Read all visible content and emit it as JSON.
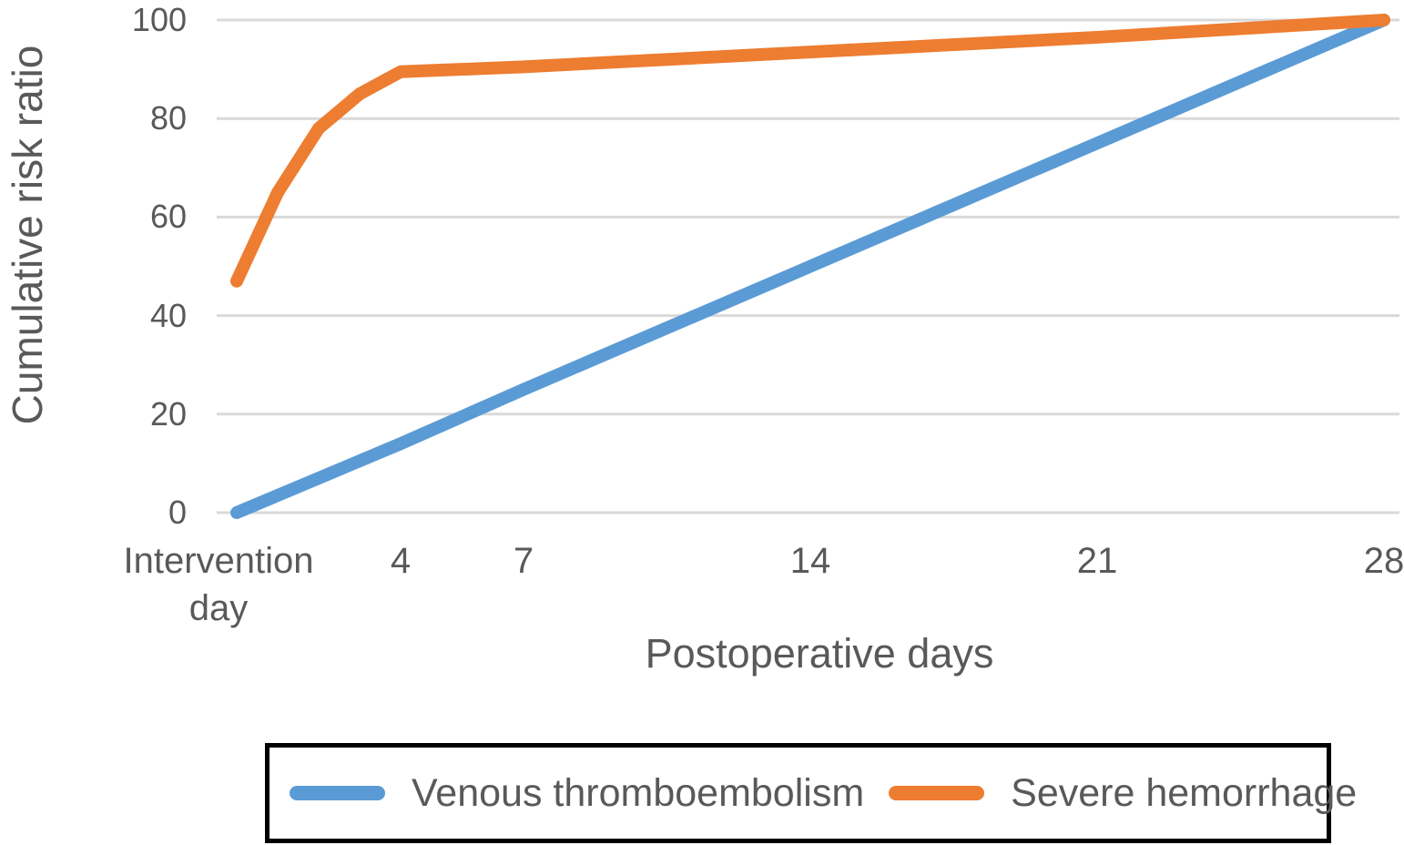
{
  "chart_data": {
    "type": "line",
    "title": "",
    "xlabel": "Postoperative days",
    "ylabel": "Cumulative risk ratio",
    "grid": "horizontal-only",
    "legend_position": "bottom-boxed",
    "x_axis": {
      "unit": "days",
      "range": [
        0,
        28
      ],
      "ticks": [
        {
          "day": 0,
          "label": "Intervention",
          "label_line2": "day"
        },
        {
          "day": 4,
          "label": "4"
        },
        {
          "day": 7,
          "label": "7"
        },
        {
          "day": 14,
          "label": "14"
        },
        {
          "day": 21,
          "label": "21"
        },
        {
          "day": 28,
          "label": "28"
        }
      ]
    },
    "y_axis": {
      "ylim": [
        0,
        100
      ],
      "tick_values": [
        0,
        20,
        40,
        60,
        80,
        100
      ],
      "tick_labels": [
        "0",
        "20",
        "40",
        "60",
        "80",
        "100"
      ]
    },
    "series": [
      {
        "name": "Venous thromboembolism",
        "color": "#5b9bd5",
        "shape": "linear",
        "points": [
          [
            0,
            0
          ],
          [
            4,
            14
          ],
          [
            7,
            25
          ],
          [
            14,
            50
          ],
          [
            21,
            75
          ],
          [
            28,
            100
          ]
        ]
      },
      {
        "name": "Severe hemorrhage",
        "color": "#ed7d31",
        "shape": "piecewise",
        "points": [
          [
            0,
            47
          ],
          [
            1,
            65
          ],
          [
            2,
            78
          ],
          [
            3,
            85
          ],
          [
            4,
            89.5
          ],
          [
            7,
            90.5
          ],
          [
            14,
            93.5
          ],
          [
            21,
            96.5
          ],
          [
            28,
            100
          ]
        ]
      }
    ],
    "colors": {
      "background": "#ffffff",
      "gridline": "#d9d9d9",
      "text": "#595959",
      "legend_border": "#000000"
    }
  }
}
